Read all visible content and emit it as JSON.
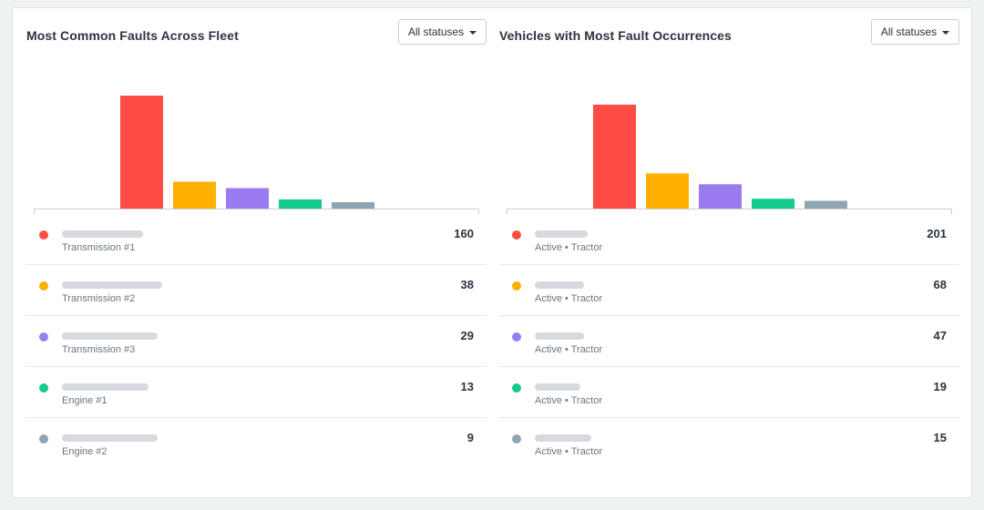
{
  "panels": [
    {
      "title": "Most Common Faults Across Fleet",
      "dropdown": "All statuses",
      "rows": [
        {
          "label": "Transmission #1",
          "count": "160",
          "color": "#ff4d45"
        },
        {
          "label": "Transmission #2",
          "count": "38",
          "color": "#ffb000"
        },
        {
          "label": "Transmission #3",
          "count": "29",
          "color": "#9b7cf0"
        },
        {
          "label": "Engine #1",
          "count": "13",
          "color": "#12c98e"
        },
        {
          "label": "Engine #2",
          "count": "9",
          "color": "#8fa5b2"
        }
      ],
      "chart_data": {
        "type": "bar",
        "values": [
          160,
          38,
          29,
          13,
          9
        ],
        "colors": [
          "#ff4d45",
          "#ffb000",
          "#9b7cf0",
          "#12c98e",
          "#8fa5b2"
        ]
      }
    },
    {
      "title": "Vehicles with Most Fault Occurrences",
      "dropdown": "All statuses",
      "rows": [
        {
          "label": "Active • Tractor",
          "count": "201",
          "color": "#ff4d45"
        },
        {
          "label": "Active • Tractor",
          "count": "68",
          "color": "#ffb000"
        },
        {
          "label": "Active • Tractor",
          "count": "47",
          "color": "#9b7cf0"
        },
        {
          "label": "Active • Tractor",
          "count": "19",
          "color": "#12c98e"
        },
        {
          "label": "Active • Tractor",
          "count": "15",
          "color": "#8fa5b2"
        }
      ],
      "chart_data": {
        "type": "bar",
        "values": [
          201,
          68,
          47,
          19,
          15
        ],
        "colors": [
          "#ff4d45",
          "#ffb000",
          "#9b7cf0",
          "#12c98e",
          "#8fa5b2"
        ]
      }
    }
  ]
}
